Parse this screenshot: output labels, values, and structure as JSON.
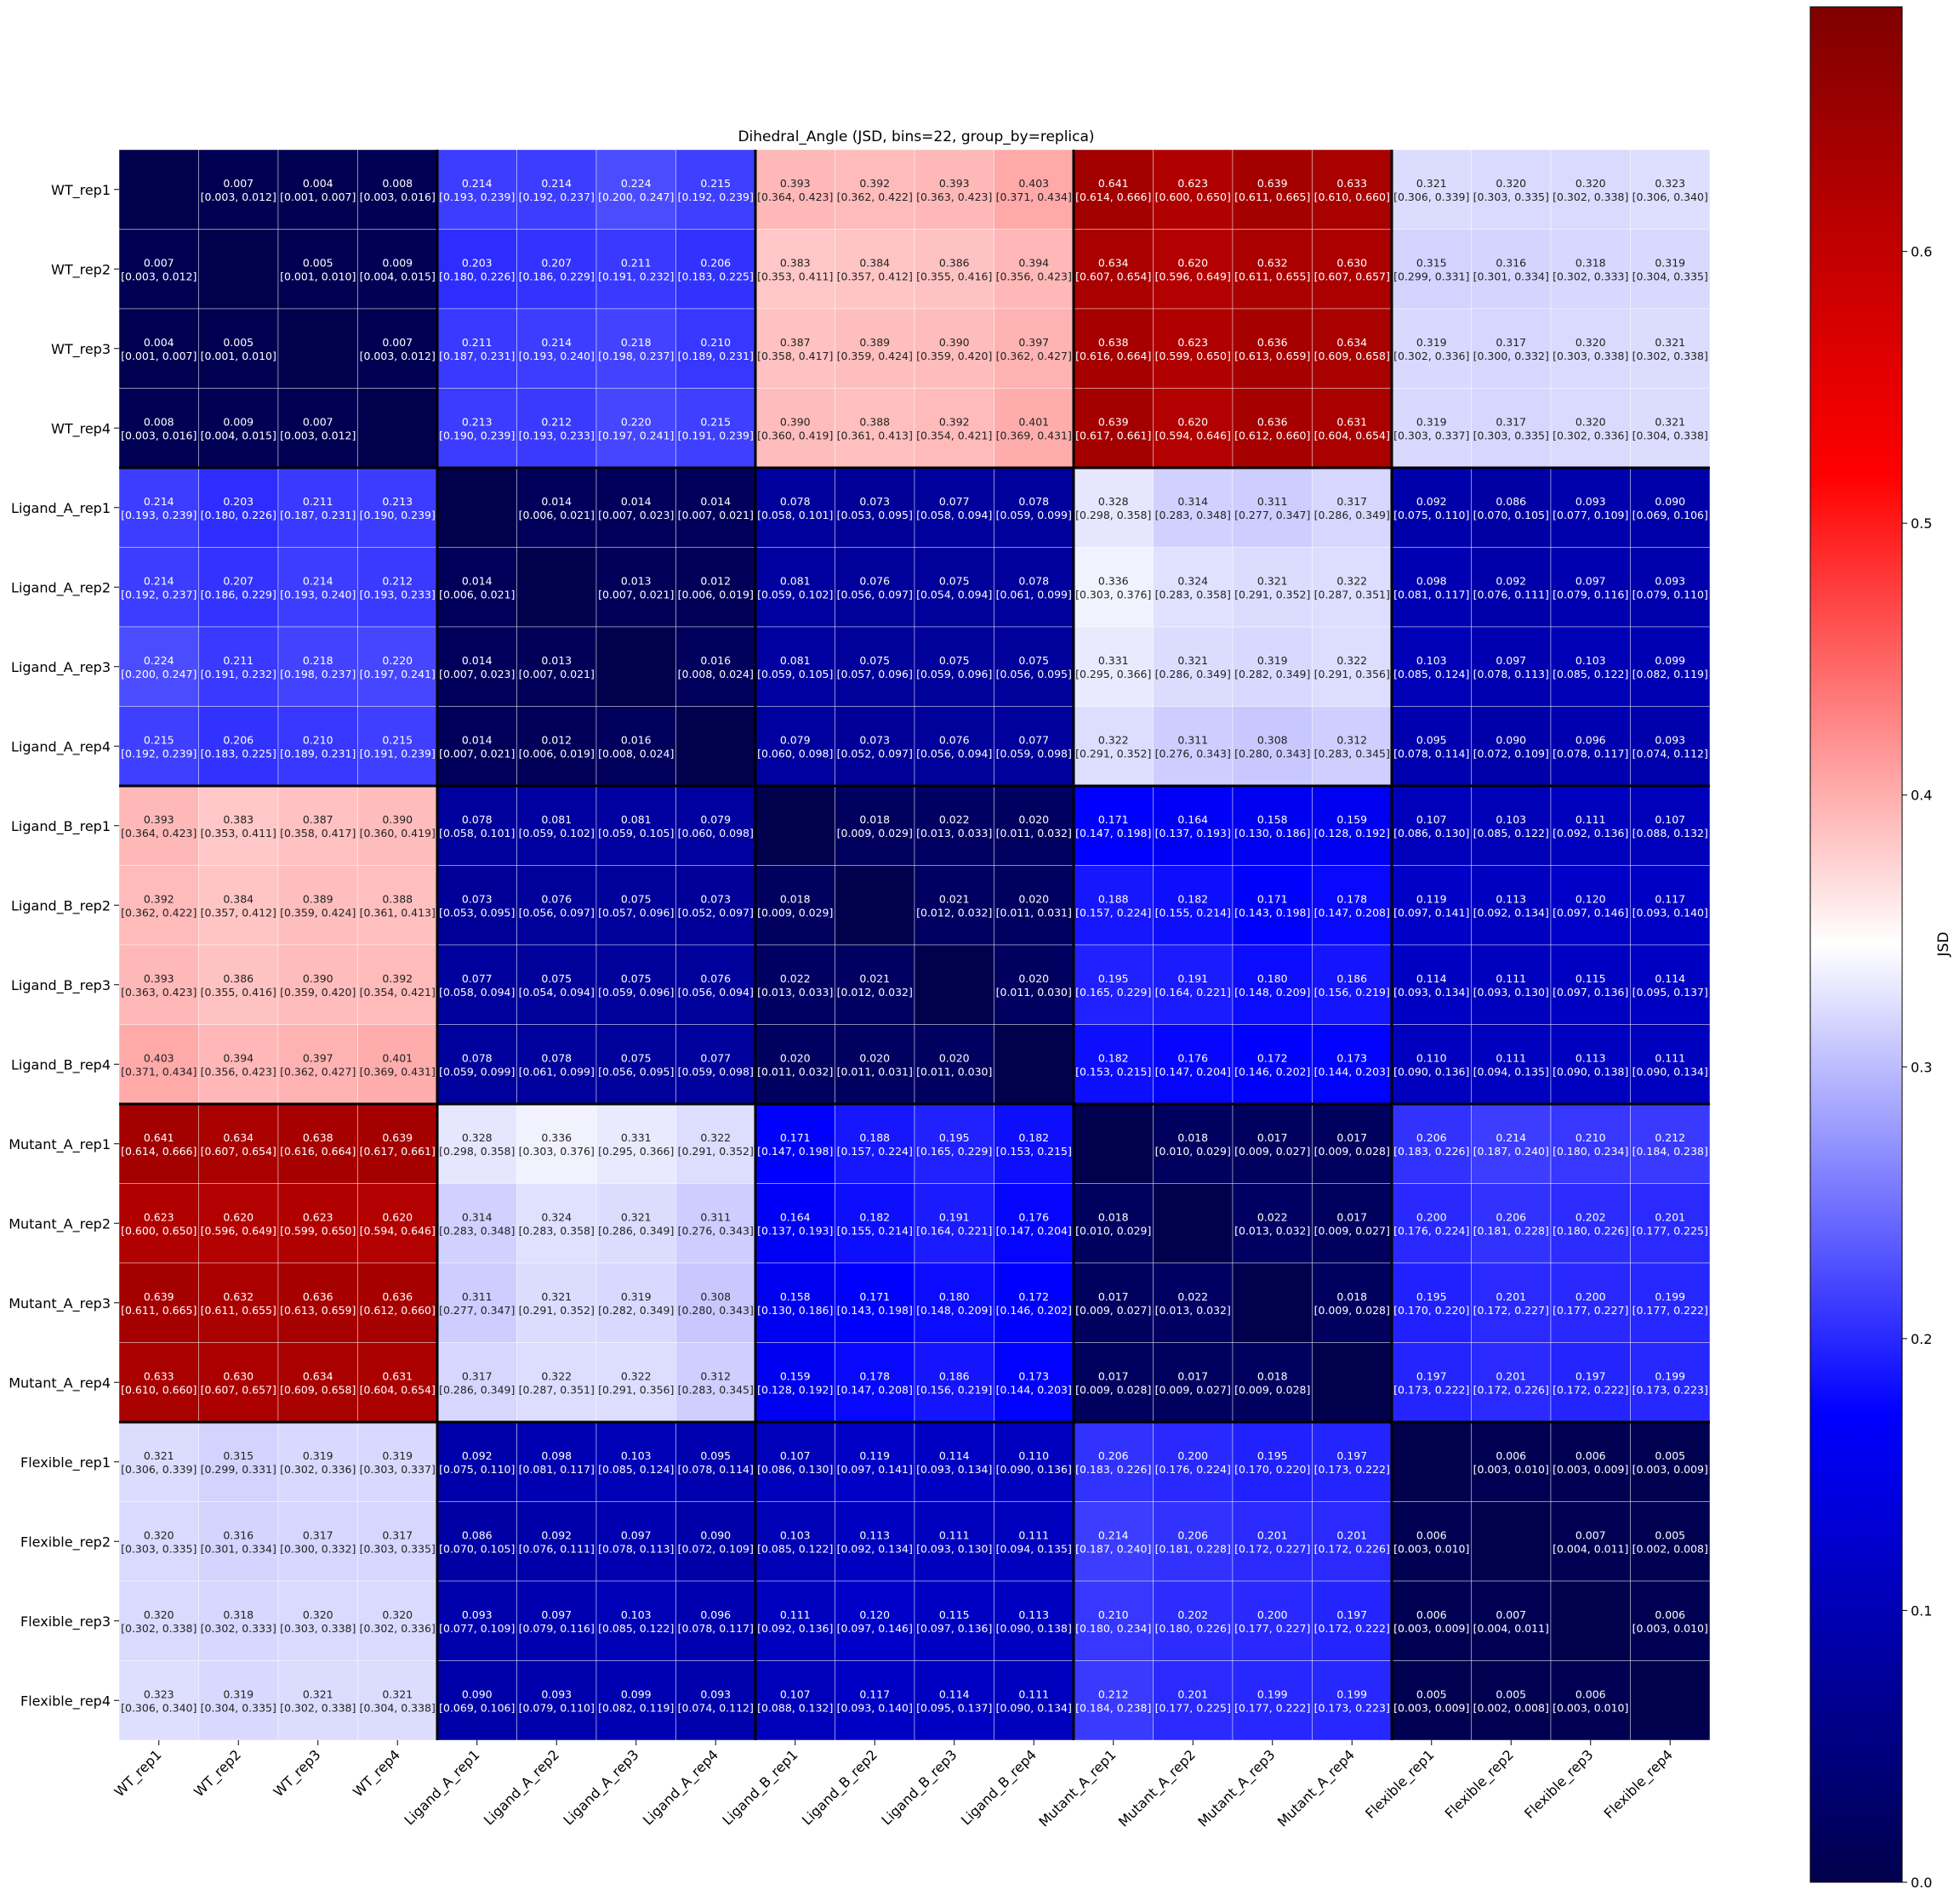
{
  "chart_data": {
    "type": "heatmap",
    "title": "Dihedral_Angle (JSD, bins=22, group_by=replica)",
    "colorbar_label": "JSD",
    "colormap": "seismic",
    "vmin": 0.0,
    "vmax": 0.69,
    "colorbar_ticks": [
      0.0,
      0.1,
      0.2,
      0.3,
      0.4,
      0.5,
      0.6
    ],
    "colorbar_tick_labels": [
      "0.0",
      "0.1",
      "0.2",
      "0.3",
      "0.4",
      "0.5",
      "0.6"
    ],
    "labels": [
      "WT_rep1",
      "WT_rep2",
      "WT_rep3",
      "WT_rep4",
      "Ligand_A_rep1",
      "Ligand_A_rep2",
      "Ligand_A_rep3",
      "Ligand_A_rep4",
      "Ligand_B_rep1",
      "Ligand_B_rep2",
      "Ligand_B_rep3",
      "Ligand_B_rep4",
      "Mutant_A_rep1",
      "Mutant_A_rep2",
      "Mutant_A_rep3",
      "Mutant_A_rep4",
      "Flexible_rep1",
      "Flexible_rep2",
      "Flexible_rep3",
      "Flexible_rep4"
    ],
    "group_size": 4,
    "values": [
      [
        null,
        0.007,
        0.004,
        0.008,
        0.214,
        0.214,
        0.224,
        0.215,
        0.393,
        0.392,
        0.393,
        0.403,
        0.641,
        0.623,
        0.639,
        0.633,
        0.321,
        0.32,
        0.32,
        0.323
      ],
      [
        0.007,
        null,
        0.005,
        0.009,
        0.203,
        0.207,
        0.211,
        0.206,
        0.383,
        0.384,
        0.386,
        0.394,
        0.634,
        0.62,
        0.632,
        0.63,
        0.315,
        0.316,
        0.318,
        0.319
      ],
      [
        0.004,
        0.005,
        null,
        0.007,
        0.211,
        0.214,
        0.218,
        0.21,
        0.387,
        0.389,
        0.39,
        0.397,
        0.638,
        0.623,
        0.636,
        0.634,
        0.319,
        0.317,
        0.32,
        0.321
      ],
      [
        0.008,
        0.009,
        0.007,
        null,
        0.213,
        0.212,
        0.22,
        0.215,
        0.39,
        0.388,
        0.392,
        0.401,
        0.639,
        0.62,
        0.636,
        0.631,
        0.319,
        0.317,
        0.32,
        0.321
      ],
      [
        0.214,
        0.203,
        0.211,
        0.213,
        null,
        0.014,
        0.014,
        0.014,
        0.078,
        0.073,
        0.077,
        0.078,
        0.328,
        0.314,
        0.311,
        0.317,
        0.092,
        0.086,
        0.093,
        0.09
      ],
      [
        0.214,
        0.207,
        0.214,
        0.212,
        0.014,
        null,
        0.013,
        0.012,
        0.081,
        0.076,
        0.075,
        0.078,
        0.336,
        0.324,
        0.321,
        0.322,
        0.098,
        0.092,
        0.097,
        0.093
      ],
      [
        0.224,
        0.211,
        0.218,
        0.22,
        0.014,
        0.013,
        null,
        0.016,
        0.081,
        0.075,
        0.075,
        0.075,
        0.331,
        0.321,
        0.319,
        0.322,
        0.103,
        0.097,
        0.103,
        0.099
      ],
      [
        0.215,
        0.206,
        0.21,
        0.215,
        0.014,
        0.012,
        0.016,
        null,
        0.079,
        0.073,
        0.076,
        0.077,
        0.322,
        0.311,
        0.308,
        0.312,
        0.095,
        0.09,
        0.096,
        0.093
      ],
      [
        0.393,
        0.383,
        0.387,
        0.39,
        0.078,
        0.081,
        0.081,
        0.079,
        null,
        0.018,
        0.022,
        0.02,
        0.171,
        0.164,
        0.158,
        0.159,
        0.107,
        0.103,
        0.111,
        0.107
      ],
      [
        0.392,
        0.384,
        0.389,
        0.388,
        0.073,
        0.076,
        0.075,
        0.073,
        0.018,
        null,
        0.021,
        0.02,
        0.188,
        0.182,
        0.171,
        0.178,
        0.119,
        0.113,
        0.12,
        0.117
      ],
      [
        0.393,
        0.386,
        0.39,
        0.392,
        0.077,
        0.075,
        0.075,
        0.076,
        0.022,
        0.021,
        null,
        0.02,
        0.195,
        0.191,
        0.18,
        0.186,
        0.114,
        0.111,
        0.115,
        0.114
      ],
      [
        0.403,
        0.394,
        0.397,
        0.401,
        0.078,
        0.078,
        0.075,
        0.077,
        0.02,
        0.02,
        0.02,
        null,
        0.182,
        0.176,
        0.172,
        0.173,
        0.11,
        0.111,
        0.113,
        0.111
      ],
      [
        0.641,
        0.634,
        0.638,
        0.639,
        0.328,
        0.336,
        0.331,
        0.322,
        0.171,
        0.188,
        0.195,
        0.182,
        null,
        0.018,
        0.017,
        0.017,
        0.206,
        0.214,
        0.21,
        0.212
      ],
      [
        0.623,
        0.62,
        0.623,
        0.62,
        0.314,
        0.324,
        0.321,
        0.311,
        0.164,
        0.182,
        0.191,
        0.176,
        0.018,
        null,
        0.022,
        0.017,
        0.2,
        0.206,
        0.202,
        0.201
      ],
      [
        0.639,
        0.632,
        0.636,
        0.636,
        0.311,
        0.321,
        0.319,
        0.308,
        0.158,
        0.171,
        0.18,
        0.172,
        0.017,
        0.022,
        null,
        0.018,
        0.195,
        0.201,
        0.2,
        0.199
      ],
      [
        0.633,
        0.63,
        0.634,
        0.631,
        0.317,
        0.322,
        0.322,
        0.312,
        0.159,
        0.178,
        0.186,
        0.173,
        0.017,
        0.017,
        0.018,
        null,
        0.197,
        0.201,
        0.197,
        0.199
      ],
      [
        0.321,
        0.315,
        0.319,
        0.319,
        0.092,
        0.098,
        0.103,
        0.095,
        0.107,
        0.119,
        0.114,
        0.11,
        0.206,
        0.2,
        0.195,
        0.197,
        null,
        0.006,
        0.006,
        0.005
      ],
      [
        0.32,
        0.316,
        0.317,
        0.317,
        0.086,
        0.092,
        0.097,
        0.09,
        0.103,
        0.113,
        0.111,
        0.111,
        0.214,
        0.206,
        0.201,
        0.201,
        0.006,
        null,
        0.007,
        0.005
      ],
      [
        0.32,
        0.318,
        0.32,
        0.32,
        0.093,
        0.097,
        0.103,
        0.096,
        0.111,
        0.12,
        0.115,
        0.113,
        0.21,
        0.202,
        0.2,
        0.197,
        0.006,
        0.007,
        null,
        0.006
      ],
      [
        0.323,
        0.319,
        0.321,
        0.321,
        0.09,
        0.093,
        0.099,
        0.093,
        0.107,
        0.117,
        0.114,
        0.111,
        0.212,
        0.201,
        0.199,
        0.199,
        0.005,
        0.005,
        0.006,
        null
      ]
    ],
    "intervals": [
      [
        null,
        "[0.003, 0.012]",
        "[0.001, 0.007]",
        "[0.003, 0.016]",
        "[0.193, 0.239]",
        "[0.192, 0.237]",
        "[0.200, 0.247]",
        "[0.192, 0.239]",
        "[0.364, 0.423]",
        "[0.362, 0.422]",
        "[0.363, 0.423]",
        "[0.371, 0.434]",
        "[0.614, 0.666]",
        "[0.600, 0.650]",
        "[0.611, 0.665]",
        "[0.610, 0.660]",
        "[0.306, 0.339]",
        "[0.303, 0.335]",
        "[0.302, 0.338]",
        "[0.306, 0.340]"
      ],
      [
        "[0.003, 0.012]",
        null,
        "[0.001, 0.010]",
        "[0.004, 0.015]",
        "[0.180, 0.226]",
        "[0.186, 0.229]",
        "[0.191, 0.232]",
        "[0.183, 0.225]",
        "[0.353, 0.411]",
        "[0.357, 0.412]",
        "[0.355, 0.416]",
        "[0.356, 0.423]",
        "[0.607, 0.654]",
        "[0.596, 0.649]",
        "[0.611, 0.655]",
        "[0.607, 0.657]",
        "[0.299, 0.331]",
        "[0.301, 0.334]",
        "[0.302, 0.333]",
        "[0.304, 0.335]"
      ],
      [
        "[0.001, 0.007]",
        "[0.001, 0.010]",
        null,
        "[0.003, 0.012]",
        "[0.187, 0.231]",
        "[0.193, 0.240]",
        "[0.198, 0.237]",
        "[0.189, 0.231]",
        "[0.358, 0.417]",
        "[0.359, 0.424]",
        "[0.359, 0.420]",
        "[0.362, 0.427]",
        "[0.616, 0.664]",
        "[0.599, 0.650]",
        "[0.613, 0.659]",
        "[0.609, 0.658]",
        "[0.302, 0.336]",
        "[0.300, 0.332]",
        "[0.303, 0.338]",
        "[0.302, 0.338]"
      ],
      [
        "[0.003, 0.016]",
        "[0.004, 0.015]",
        "[0.003, 0.012]",
        null,
        "[0.190, 0.239]",
        "[0.193, 0.233]",
        "[0.197, 0.241]",
        "[0.191, 0.239]",
        "[0.360, 0.419]",
        "[0.361, 0.413]",
        "[0.354, 0.421]",
        "[0.369, 0.431]",
        "[0.617, 0.661]",
        "[0.594, 0.646]",
        "[0.612, 0.660]",
        "[0.604, 0.654]",
        "[0.303, 0.337]",
        "[0.303, 0.335]",
        "[0.302, 0.336]",
        "[0.304, 0.338]"
      ],
      [
        "[0.193, 0.239]",
        "[0.180, 0.226]",
        "[0.187, 0.231]",
        "[0.190, 0.239]",
        null,
        "[0.006, 0.021]",
        "[0.007, 0.023]",
        "[0.007, 0.021]",
        "[0.058, 0.101]",
        "[0.053, 0.095]",
        "[0.058, 0.094]",
        "[0.059, 0.099]",
        "[0.298, 0.358]",
        "[0.283, 0.348]",
        "[0.277, 0.347]",
        "[0.286, 0.349]",
        "[0.075, 0.110]",
        "[0.070, 0.105]",
        "[0.077, 0.109]",
        "[0.069, 0.106]"
      ],
      [
        "[0.192, 0.237]",
        "[0.186, 0.229]",
        "[0.193, 0.240]",
        "[0.193, 0.233]",
        "[0.006, 0.021]",
        null,
        "[0.007, 0.021]",
        "[0.006, 0.019]",
        "[0.059, 0.102]",
        "[0.056, 0.097]",
        "[0.054, 0.094]",
        "[0.061, 0.099]",
        "[0.303, 0.376]",
        "[0.283, 0.358]",
        "[0.291, 0.352]",
        "[0.287, 0.351]",
        "[0.081, 0.117]",
        "[0.076, 0.111]",
        "[0.079, 0.116]",
        "[0.079, 0.110]"
      ],
      [
        "[0.200, 0.247]",
        "[0.191, 0.232]",
        "[0.198, 0.237]",
        "[0.197, 0.241]",
        "[0.007, 0.023]",
        "[0.007, 0.021]",
        null,
        "[0.008, 0.024]",
        "[0.059, 0.105]",
        "[0.057, 0.096]",
        "[0.059, 0.096]",
        "[0.056, 0.095]",
        "[0.295, 0.366]",
        "[0.286, 0.349]",
        "[0.282, 0.349]",
        "[0.291, 0.356]",
        "[0.085, 0.124]",
        "[0.078, 0.113]",
        "[0.085, 0.122]",
        "[0.082, 0.119]"
      ],
      [
        "[0.192, 0.239]",
        "[0.183, 0.225]",
        "[0.189, 0.231]",
        "[0.191, 0.239]",
        "[0.007, 0.021]",
        "[0.006, 0.019]",
        "[0.008, 0.024]",
        null,
        "[0.060, 0.098]",
        "[0.052, 0.097]",
        "[0.056, 0.094]",
        "[0.059, 0.098]",
        "[0.291, 0.352]",
        "[0.276, 0.343]",
        "[0.280, 0.343]",
        "[0.283, 0.345]",
        "[0.078, 0.114]",
        "[0.072, 0.109]",
        "[0.078, 0.117]",
        "[0.074, 0.112]"
      ],
      [
        "[0.364, 0.423]",
        "[0.353, 0.411]",
        "[0.358, 0.417]",
        "[0.360, 0.419]",
        "[0.058, 0.101]",
        "[0.059, 0.102]",
        "[0.059, 0.105]",
        "[0.060, 0.098]",
        null,
        "[0.009, 0.029]",
        "[0.013, 0.033]",
        "[0.011, 0.032]",
        "[0.147, 0.198]",
        "[0.137, 0.193]",
        "[0.130, 0.186]",
        "[0.128, 0.192]",
        "[0.086, 0.130]",
        "[0.085, 0.122]",
        "[0.092, 0.136]",
        "[0.088, 0.132]"
      ],
      [
        "[0.362, 0.422]",
        "[0.357, 0.412]",
        "[0.359, 0.424]",
        "[0.361, 0.413]",
        "[0.053, 0.095]",
        "[0.056, 0.097]",
        "[0.057, 0.096]",
        "[0.052, 0.097]",
        "[0.009, 0.029]",
        null,
        "[0.012, 0.032]",
        "[0.011, 0.031]",
        "[0.157, 0.224]",
        "[0.155, 0.214]",
        "[0.143, 0.198]",
        "[0.147, 0.208]",
        "[0.097, 0.141]",
        "[0.092, 0.134]",
        "[0.097, 0.146]",
        "[0.093, 0.140]"
      ],
      [
        "[0.363, 0.423]",
        "[0.355, 0.416]",
        "[0.359, 0.420]",
        "[0.354, 0.421]",
        "[0.058, 0.094]",
        "[0.054, 0.094]",
        "[0.059, 0.096]",
        "[0.056, 0.094]",
        "[0.013, 0.033]",
        "[0.012, 0.032]",
        null,
        "[0.011, 0.030]",
        "[0.165, 0.229]",
        "[0.164, 0.221]",
        "[0.148, 0.209]",
        "[0.156, 0.219]",
        "[0.093, 0.134]",
        "[0.093, 0.130]",
        "[0.097, 0.136]",
        "[0.095, 0.137]"
      ],
      [
        "[0.371, 0.434]",
        "[0.356, 0.423]",
        "[0.362, 0.427]",
        "[0.369, 0.431]",
        "[0.059, 0.099]",
        "[0.061, 0.099]",
        "[0.056, 0.095]",
        "[0.059, 0.098]",
        "[0.011, 0.032]",
        "[0.011, 0.031]",
        "[0.011, 0.030]",
        null,
        "[0.153, 0.215]",
        "[0.147, 0.204]",
        "[0.146, 0.202]",
        "[0.144, 0.203]",
        "[0.090, 0.136]",
        "[0.094, 0.135]",
        "[0.090, 0.138]",
        "[0.090, 0.134]"
      ],
      [
        "[0.614, 0.666]",
        "[0.607, 0.654]",
        "[0.616, 0.664]",
        "[0.617, 0.661]",
        "[0.298, 0.358]",
        "[0.303, 0.376]",
        "[0.295, 0.366]",
        "[0.291, 0.352]",
        "[0.147, 0.198]",
        "[0.157, 0.224]",
        "[0.165, 0.229]",
        "[0.153, 0.215]",
        null,
        "[0.010, 0.029]",
        "[0.009, 0.027]",
        "[0.009, 0.028]",
        "[0.183, 0.226]",
        "[0.187, 0.240]",
        "[0.180, 0.234]",
        "[0.184, 0.238]"
      ],
      [
        "[0.600, 0.650]",
        "[0.596, 0.649]",
        "[0.599, 0.650]",
        "[0.594, 0.646]",
        "[0.283, 0.348]",
        "[0.283, 0.358]",
        "[0.286, 0.349]",
        "[0.276, 0.343]",
        "[0.137, 0.193]",
        "[0.155, 0.214]",
        "[0.164, 0.221]",
        "[0.147, 0.204]",
        "[0.010, 0.029]",
        null,
        "[0.013, 0.032]",
        "[0.009, 0.027]",
        "[0.176, 0.224]",
        "[0.181, 0.228]",
        "[0.180, 0.226]",
        "[0.177, 0.225]"
      ],
      [
        "[0.611, 0.665]",
        "[0.611, 0.655]",
        "[0.613, 0.659]",
        "[0.612, 0.660]",
        "[0.277, 0.347]",
        "[0.291, 0.352]",
        "[0.282, 0.349]",
        "[0.280, 0.343]",
        "[0.130, 0.186]",
        "[0.143, 0.198]",
        "[0.148, 0.209]",
        "[0.146, 0.202]",
        "[0.009, 0.027]",
        "[0.013, 0.032]",
        null,
        "[0.009, 0.028]",
        "[0.170, 0.220]",
        "[0.172, 0.227]",
        "[0.177, 0.227]",
        "[0.177, 0.222]"
      ],
      [
        "[0.610, 0.660]",
        "[0.607, 0.657]",
        "[0.609, 0.658]",
        "[0.604, 0.654]",
        "[0.286, 0.349]",
        "[0.287, 0.351]",
        "[0.291, 0.356]",
        "[0.283, 0.345]",
        "[0.128, 0.192]",
        "[0.147, 0.208]",
        "[0.156, 0.219]",
        "[0.144, 0.203]",
        "[0.009, 0.028]",
        "[0.009, 0.027]",
        "[0.009, 0.028]",
        null,
        "[0.173, 0.222]",
        "[0.172, 0.226]",
        "[0.172, 0.222]",
        "[0.173, 0.223]"
      ],
      [
        "[0.306, 0.339]",
        "[0.299, 0.331]",
        "[0.302, 0.336]",
        "[0.303, 0.337]",
        "[0.075, 0.110]",
        "[0.081, 0.117]",
        "[0.085, 0.124]",
        "[0.078, 0.114]",
        "[0.086, 0.130]",
        "[0.097, 0.141]",
        "[0.093, 0.134]",
        "[0.090, 0.136]",
        "[0.183, 0.226]",
        "[0.176, 0.224]",
        "[0.170, 0.220]",
        "[0.173, 0.222]",
        null,
        "[0.003, 0.010]",
        "[0.003, 0.009]",
        "[0.003, 0.009]"
      ],
      [
        "[0.303, 0.335]",
        "[0.301, 0.334]",
        "[0.300, 0.332]",
        "[0.303, 0.335]",
        "[0.070, 0.105]",
        "[0.076, 0.111]",
        "[0.078, 0.113]",
        "[0.072, 0.109]",
        "[0.085, 0.122]",
        "[0.092, 0.134]",
        "[0.093, 0.130]",
        "[0.094, 0.135]",
        "[0.187, 0.240]",
        "[0.181, 0.228]",
        "[0.172, 0.227]",
        "[0.172, 0.226]",
        "[0.003, 0.010]",
        null,
        "[0.004, 0.011]",
        "[0.002, 0.008]"
      ],
      [
        "[0.302, 0.338]",
        "[0.302, 0.333]",
        "[0.303, 0.338]",
        "[0.302, 0.336]",
        "[0.077, 0.109]",
        "[0.079, 0.116]",
        "[0.085, 0.122]",
        "[0.078, 0.117]",
        "[0.092, 0.136]",
        "[0.097, 0.146]",
        "[0.097, 0.136]",
        "[0.090, 0.138]",
        "[0.180, 0.234]",
        "[0.180, 0.226]",
        "[0.177, 0.227]",
        "[0.172, 0.222]",
        "[0.003, 0.009]",
        "[0.004, 0.011]",
        null,
        "[0.003, 0.010]"
      ],
      [
        "[0.306, 0.340]",
        "[0.304, 0.335]",
        "[0.302, 0.338]",
        "[0.304, 0.338]",
        "[0.069, 0.106]",
        "[0.079, 0.110]",
        "[0.082, 0.119]",
        "[0.074, 0.112]",
        "[0.088, 0.132]",
        "[0.093, 0.140]",
        "[0.095, 0.137]",
        "[0.090, 0.134]",
        "[0.184, 0.238]",
        "[0.177, 0.225]",
        "[0.177, 0.222]",
        "[0.173, 0.223]",
        "[0.003, 0.009]",
        "[0.002, 0.008]",
        "[0.003, 0.010]",
        null
      ]
    ]
  }
}
